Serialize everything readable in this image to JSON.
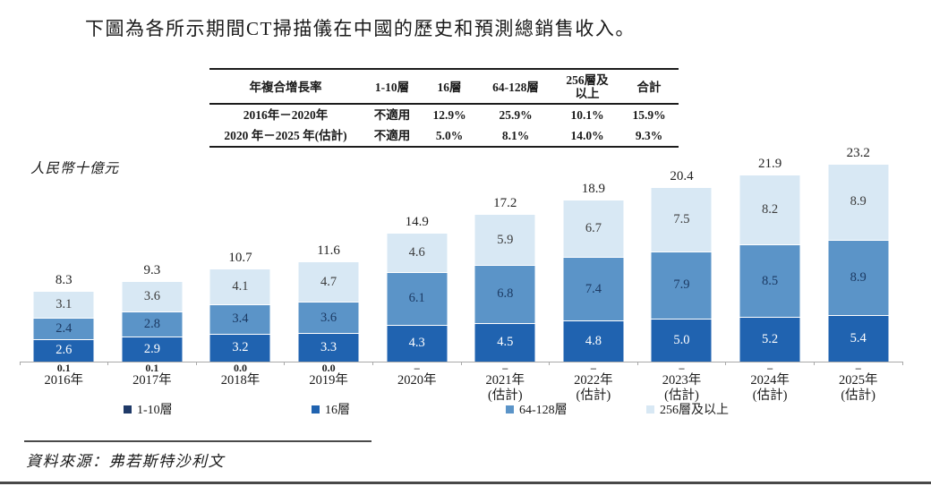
{
  "page": {
    "title": "下圖為各所示期間CT掃描儀在中國的歷史和預測總銷售收入。",
    "source": "資料來源：弗若斯特沙利文"
  },
  "cagr_table": {
    "headers": [
      "年複合增長率",
      "1-10層",
      "16層",
      "64-128層",
      "256層及\n以上",
      "合計"
    ],
    "rows": [
      [
        "2016年－2020年",
        "不適用",
        "12.9%",
        "25.9%",
        "10.1%",
        "15.9%"
      ],
      [
        "2020 年－2025 年(估計)",
        "不適用",
        "5.0%",
        "8.1%",
        "14.0%",
        "9.3%"
      ]
    ]
  },
  "chart_data": {
    "type": "bar",
    "stacked": true,
    "title": "",
    "ylabel": "人民幣十億元",
    "unit": "人民幣十億元",
    "ylim": [
      0,
      24
    ],
    "grid": false,
    "legend_position": "bottom",
    "categories": [
      "2016年",
      "2017年",
      "2018年",
      "2019年",
      "2020年",
      "2021年\n(估計)",
      "2022年\n(估計)",
      "2023年\n(估計)",
      "2024年\n(估計)",
      "2025年\n(估計)"
    ],
    "series": [
      {
        "name": "1-10層",
        "color": "#1f3a68",
        "label_color": "#222222",
        "values": [
          0.1,
          0.1,
          0.0,
          0.0,
          0,
          0,
          0,
          0,
          0,
          0
        ],
        "labels": [
          "0.1",
          "0.1",
          "0.0",
          "0.0",
          "–",
          "–",
          "–",
          "–",
          "–",
          "–"
        ],
        "label_position": "below-axis"
      },
      {
        "name": "16層",
        "color": "#2063b0",
        "label_color": "#ffffff",
        "values": [
          2.6,
          2.9,
          3.2,
          3.3,
          4.3,
          4.5,
          4.8,
          5.0,
          5.2,
          5.4
        ]
      },
      {
        "name": "64-128層",
        "color": "#5b94c8",
        "label_color": "#1c3a63",
        "values": [
          2.4,
          2.8,
          3.4,
          3.6,
          6.1,
          6.8,
          7.4,
          7.9,
          8.5,
          8.9
        ]
      },
      {
        "name": "256層及以上",
        "color": "#d8e8f4",
        "label_color": "#3c3c3c",
        "values": [
          3.1,
          3.6,
          4.1,
          4.7,
          4.6,
          5.9,
          6.7,
          7.5,
          8.2,
          8.9
        ]
      }
    ],
    "totals": [
      8.3,
      9.3,
      10.7,
      11.6,
      14.9,
      17.2,
      18.9,
      20.4,
      21.9,
      23.2
    ]
  }
}
